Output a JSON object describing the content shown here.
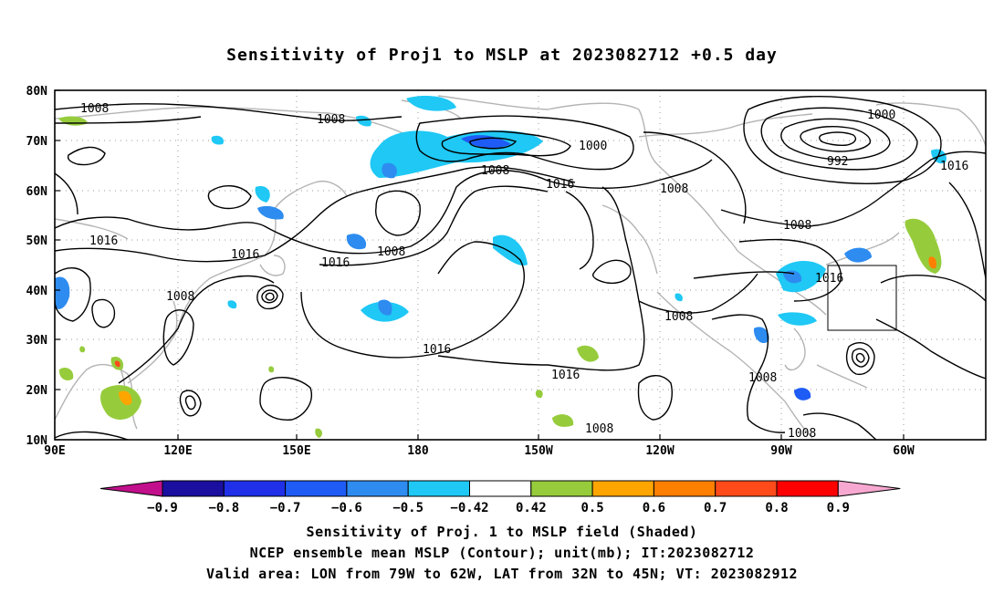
{
  "title": "Sensitivity of Proj1 to MSLP at 2023082712 +0.5 day",
  "lat_labels": [
    "80N",
    "70N",
    "60N",
    "50N",
    "40N",
    "30N",
    "20N",
    "10N"
  ],
  "lon_labels": [
    "90E",
    "120E",
    "150E",
    "180",
    "150W",
    "120W",
    "90W",
    "60W"
  ],
  "contour_labels": [
    {
      "text": "1008",
      "key": "c1"
    },
    {
      "text": "1008",
      "key": "c2"
    },
    {
      "text": "1000",
      "key": "c3"
    },
    {
      "text": "1008",
      "key": "c4"
    },
    {
      "text": "1016",
      "key": "c5"
    },
    {
      "text": "1008",
      "key": "c6"
    },
    {
      "text": "1000",
      "key": "c7"
    },
    {
      "text": "992",
      "key": "c8"
    },
    {
      "text": "1016",
      "key": "c9"
    },
    {
      "text": "1016",
      "key": "c10"
    },
    {
      "text": "1016",
      "key": "c11"
    },
    {
      "text": "1008",
      "key": "c12"
    },
    {
      "text": "1016",
      "key": "c13"
    },
    {
      "text": "1008",
      "key": "c14"
    },
    {
      "text": "1008",
      "key": "c15"
    },
    {
      "text": "1016",
      "key": "c16"
    },
    {
      "text": "1016",
      "key": "c17"
    },
    {
      "text": "1008",
      "key": "c18"
    },
    {
      "text": "1016",
      "key": "c19"
    },
    {
      "text": "1008",
      "key": "c20"
    },
    {
      "text": "1008",
      "key": "c21"
    },
    {
      "text": "1008",
      "key": "c22"
    }
  ],
  "colorbar": {
    "ticks": [
      "−0.9",
      "−0.8",
      "−0.7",
      "−0.6",
      "−0.5",
      "−0.42",
      "0.42",
      "0.5",
      "0.6",
      "0.7",
      "0.8",
      "0.9"
    ],
    "colors": [
      "#1a0f9e",
      "#1f30e8",
      "#1e5cf5",
      "#2e8cf0",
      "#1fc8f5",
      "#ffffff",
      "#96cc3c",
      "#ffa500",
      "#ff7f00",
      "#ff4a1a",
      "#ff0000"
    ],
    "end_colors": {
      "low": "#c2108c",
      "high": "#f7a8d0"
    }
  },
  "footer": {
    "line1": "Sensitivity of Proj. 1 to MSLP field (Shaded)",
    "line2": "NCEP ensemble mean MSLP (Contour); unit(mb); IT:2023082712",
    "line3": "Valid area: LON from 79W to 62W, LAT from 32N to 45N; VT: 2023082912"
  },
  "colors": {
    "contour": "#000000",
    "coast": "#b4b4b4",
    "grid": "#999999"
  }
}
